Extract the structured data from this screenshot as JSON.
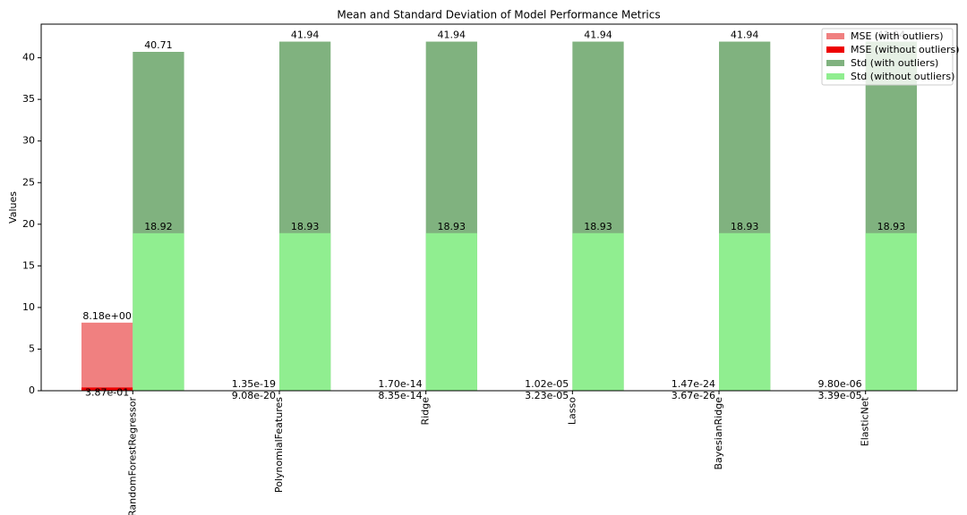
{
  "chart_data": {
    "type": "bar",
    "title": "Mean and Standard Deviation of Model Performance Metrics",
    "y_label": "Values",
    "categories": [
      "RandomForestRegressor",
      "PolynomialFeatures",
      "Ridge",
      "Lasso",
      "BayesianRidge",
      "ElasticNet"
    ],
    "series": [
      {
        "name": "MSE (with outliers)",
        "color": "#f08080",
        "values": [
          8.18,
          1.35e-19,
          1.7e-14,
          1.02e-05,
          1.47e-24,
          9.8e-06
        ],
        "value_labels": [
          "8.18e+00",
          "1.35e-19",
          "1.70e-14",
          "1.02e-05",
          "1.47e-24",
          "9.80e-06"
        ]
      },
      {
        "name": "MSE (without outliers)",
        "color": "#ee0000",
        "values": [
          0.387,
          9.08e-20,
          8.35e-14,
          3.23e-05,
          3.67e-26,
          3.39e-05
        ],
        "value_labels": [
          "3.87e-01",
          "9.08e-20",
          "8.35e-14",
          "3.23e-05",
          "3.67e-26",
          "3.39e-05"
        ]
      },
      {
        "name": "Std (with outliers)",
        "color": "#80b27f",
        "values": [
          40.71,
          41.94,
          41.94,
          41.94,
          41.94,
          41.94
        ]
      },
      {
        "name": "Std (without outliers)",
        "color": "#90ee90",
        "values": [
          18.92,
          18.93,
          18.93,
          18.93,
          18.93,
          18.93
        ]
      }
    ],
    "ylim": [
      0,
      44.04
    ],
    "yticks": [
      0,
      5,
      10,
      15,
      20,
      25,
      30,
      35,
      40
    ],
    "legend": "upper right"
  }
}
